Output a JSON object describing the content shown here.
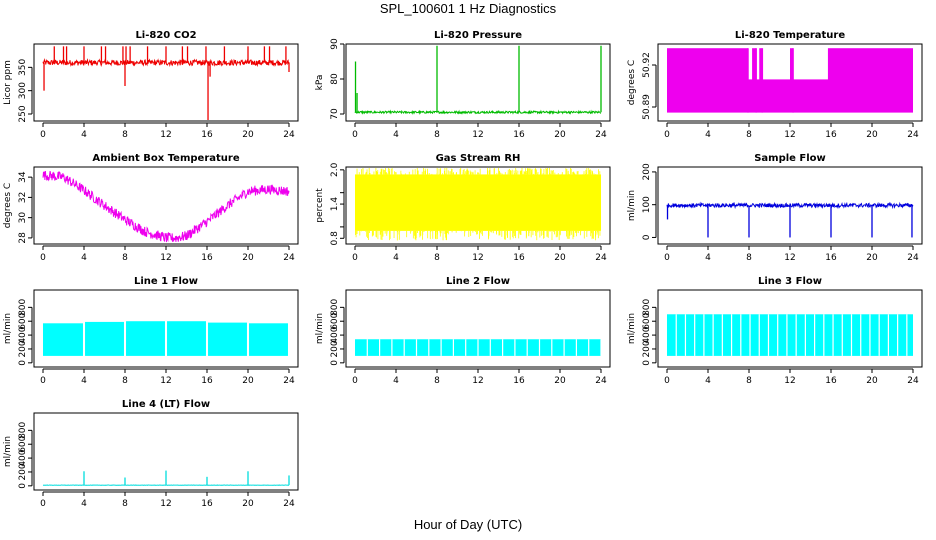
{
  "figure": {
    "title": "SPL_100601  1 Hz Diagnostics",
    "xlabel": "Hour of Day (UTC)"
  },
  "chart_data": [
    {
      "type": "line",
      "title": "Li-820 CO2",
      "ylabel": "Licor ppm",
      "xlim": [
        0,
        24
      ],
      "ylim": [
        235,
        400
      ],
      "yticks": [
        250,
        300,
        350
      ],
      "xticks": [
        0,
        4,
        8,
        12,
        16,
        20,
        24
      ],
      "color": "#ee0000",
      "baseline": 360,
      "noise": 6,
      "events": [
        {
          "x": 0.1,
          "y": 300
        },
        {
          "x": 1.1,
          "y": 395
        },
        {
          "x": 2.0,
          "y": 395
        },
        {
          "x": 2.3,
          "y": 395
        },
        {
          "x": 4.0,
          "y": 395
        },
        {
          "x": 5.7,
          "y": 395
        },
        {
          "x": 6.1,
          "y": 395
        },
        {
          "x": 7.8,
          "y": 395
        },
        {
          "x": 8.0,
          "y": 310
        },
        {
          "x": 8.1,
          "y": 395
        },
        {
          "x": 8.5,
          "y": 395
        },
        {
          "x": 10.2,
          "y": 395
        },
        {
          "x": 12.0,
          "y": 395
        },
        {
          "x": 13.6,
          "y": 395
        },
        {
          "x": 14.1,
          "y": 395
        },
        {
          "x": 15.9,
          "y": 395
        },
        {
          "x": 16.1,
          "y": 237
        },
        {
          "x": 16.3,
          "y": 330
        },
        {
          "x": 17.7,
          "y": 395
        },
        {
          "x": 20.0,
          "y": 395
        },
        {
          "x": 21.6,
          "y": 395
        },
        {
          "x": 22.1,
          "y": 395
        },
        {
          "x": 23.7,
          "y": 395
        },
        {
          "x": 24.0,
          "y": 340
        }
      ]
    },
    {
      "type": "line",
      "title": "Li-820 Pressure",
      "ylabel": "kPa",
      "xlim": [
        0,
        24
      ],
      "ylim": [
        68,
        90
      ],
      "yticks": [
        70,
        80,
        90
      ],
      "xticks": [
        0,
        4,
        8,
        12,
        16,
        20,
        24
      ],
      "color": "#00bb00",
      "baseline": 70.5,
      "noise": 0.3,
      "events": [
        {
          "x": 0.05,
          "y": 85
        },
        {
          "x": 0.2,
          "y": 76
        },
        {
          "x": 8.0,
          "y": 89.5
        },
        {
          "x": 16.0,
          "y": 89.5
        },
        {
          "x": 24.0,
          "y": 89.5
        }
      ]
    },
    {
      "type": "area",
      "title": "Li-820 Temperature",
      "ylabel": "degrees C",
      "xlim": [
        0,
        24
      ],
      "ylim": [
        50.88,
        50.935
      ],
      "yticks": [
        50.89,
        50.92
      ],
      "ytick_labels": [
        "50.89",
        "50.92"
      ],
      "xticks": [
        0,
        4,
        8,
        12,
        16,
        20,
        24
      ],
      "color": "#ee00ee",
      "band": {
        "low": 50.886,
        "high": 50.932
      },
      "gaps": [
        [
          7.9,
          8.3
        ],
        [
          8.7,
          9.0
        ],
        [
          9.3,
          12.0
        ],
        [
          12.3,
          15.7
        ]
      ]
    },
    {
      "type": "line",
      "title": "Ambient Box Temperature",
      "ylabel": "degrees C",
      "xlim": [
        0,
        24
      ],
      "ylim": [
        27.4,
        35
      ],
      "yticks": [
        28,
        30,
        32,
        34
      ],
      "xticks": [
        0,
        4,
        8,
        12,
        16,
        20,
        24
      ],
      "color": "#ee00ee",
      "noise": 0.5,
      "curve": [
        [
          0,
          34.2
        ],
        [
          2,
          34.0
        ],
        [
          4,
          32.7
        ],
        [
          6,
          31.2
        ],
        [
          8,
          29.8
        ],
        [
          10,
          28.6
        ],
        [
          12,
          28.0
        ],
        [
          13,
          28.0
        ],
        [
          14,
          28.2
        ],
        [
          16,
          29.6
        ],
        [
          18,
          31.2
        ],
        [
          20,
          32.6
        ],
        [
          22,
          32.8
        ],
        [
          24,
          32.6
        ]
      ]
    },
    {
      "type": "area",
      "title": "Gas Stream RH",
      "ylabel": "percent",
      "xlim": [
        0,
        24
      ],
      "ylim": [
        0.7,
        2.05
      ],
      "yticks": [
        0.8,
        1.0,
        1.4,
        1.6,
        2.0
      ],
      "ytick_labels": [
        "0.8",
        "",
        "1.4",
        "",
        "2.0"
      ],
      "xticks": [
        0,
        4,
        8,
        12,
        16,
        20,
        24
      ],
      "color": "#ffff00",
      "band": {
        "low": 0.93,
        "high": 1.92
      },
      "jitter": 0.12
    },
    {
      "type": "line",
      "title": "Sample Flow",
      "ylabel": "ml/min",
      "xlim": [
        0,
        24
      ],
      "ylim": [
        -20,
        215
      ],
      "yticks": [
        0,
        100,
        200
      ],
      "xticks": [
        0,
        4,
        8,
        12,
        16,
        20,
        24
      ],
      "color": "#0000dd",
      "baseline": 98,
      "noise": 6,
      "events": [
        {
          "x": 0.05,
          "y": 55
        },
        {
          "x": 4.0,
          "y": 0
        },
        {
          "x": 8.0,
          "y": 0
        },
        {
          "x": 12.0,
          "y": 0
        },
        {
          "x": 16.0,
          "y": 0
        },
        {
          "x": 20.0,
          "y": 0
        },
        {
          "x": 23.9,
          "y": 0
        }
      ]
    },
    {
      "type": "area",
      "title": "Line 1 Flow",
      "ylabel": "ml/min",
      "xlim": [
        0,
        24
      ],
      "ylim": [
        -60,
        1050
      ],
      "yticks": [
        0,
        200,
        400,
        600,
        800
      ],
      "ytick_labels": [
        "0",
        "200",
        "400",
        "600",
        "800"
      ],
      "xticks": [
        0,
        4,
        8,
        12,
        16,
        20,
        24
      ],
      "color": "#00ffff",
      "segments": [
        [
          0,
          3.9,
          570
        ],
        [
          4.1,
          7.9,
          590
        ],
        [
          8.1,
          11.9,
          600
        ],
        [
          12.1,
          15.9,
          600
        ],
        [
          16.1,
          19.9,
          580
        ],
        [
          20.1,
          23.9,
          570
        ]
      ],
      "band_low": 100
    },
    {
      "type": "area",
      "title": "Line 2 Flow",
      "ylabel": "ml/min",
      "xlim": [
        0,
        24
      ],
      "ylim": [
        -60,
        1050
      ],
      "yticks": [
        0,
        200,
        400,
        600,
        800
      ],
      "ytick_labels": [
        "0",
        "200",
        "400",
        "600",
        "800"
      ],
      "xticks": [
        0,
        4,
        8,
        12,
        16,
        20,
        24
      ],
      "color": "#00ffff",
      "segments": [
        [
          0,
          24,
          340
        ]
      ],
      "band_low": 100,
      "notch_every": 1.2
    },
    {
      "type": "area",
      "title": "Line 3 Flow",
      "ylabel": "ml/min",
      "xlim": [
        0,
        24
      ],
      "ylim": [
        -60,
        1050
      ],
      "yticks": [
        0,
        200,
        400,
        600,
        800
      ],
      "ytick_labels": [
        "0",
        "200",
        "400",
        "600",
        "800"
      ],
      "xticks": [
        0,
        4,
        8,
        12,
        16,
        20,
        24
      ],
      "color": "#00ffff",
      "segments": [
        [
          0,
          24,
          700
        ]
      ],
      "band_low": 100,
      "notch_every": 0.9
    },
    {
      "type": "line",
      "title": "Line 4 (LT) Flow",
      "ylabel": "ml/min",
      "xlim": [
        0,
        24
      ],
      "ylim": [
        -60,
        1050
      ],
      "yticks": [
        0,
        200,
        400,
        600,
        800
      ],
      "ytick_labels": [
        "0",
        "200",
        "400",
        "600",
        "800"
      ],
      "xticks": [
        0,
        4,
        8,
        12,
        16,
        20,
        24
      ],
      "color": "#00dddd",
      "baseline": 10,
      "noise": 2,
      "events": [
        {
          "x": 4.0,
          "y": 210
        },
        {
          "x": 8.0,
          "y": 120
        },
        {
          "x": 12.0,
          "y": 220
        },
        {
          "x": 16.0,
          "y": 130
        },
        {
          "x": 20.0,
          "y": 210
        },
        {
          "x": 24.0,
          "y": 150
        }
      ]
    }
  ]
}
